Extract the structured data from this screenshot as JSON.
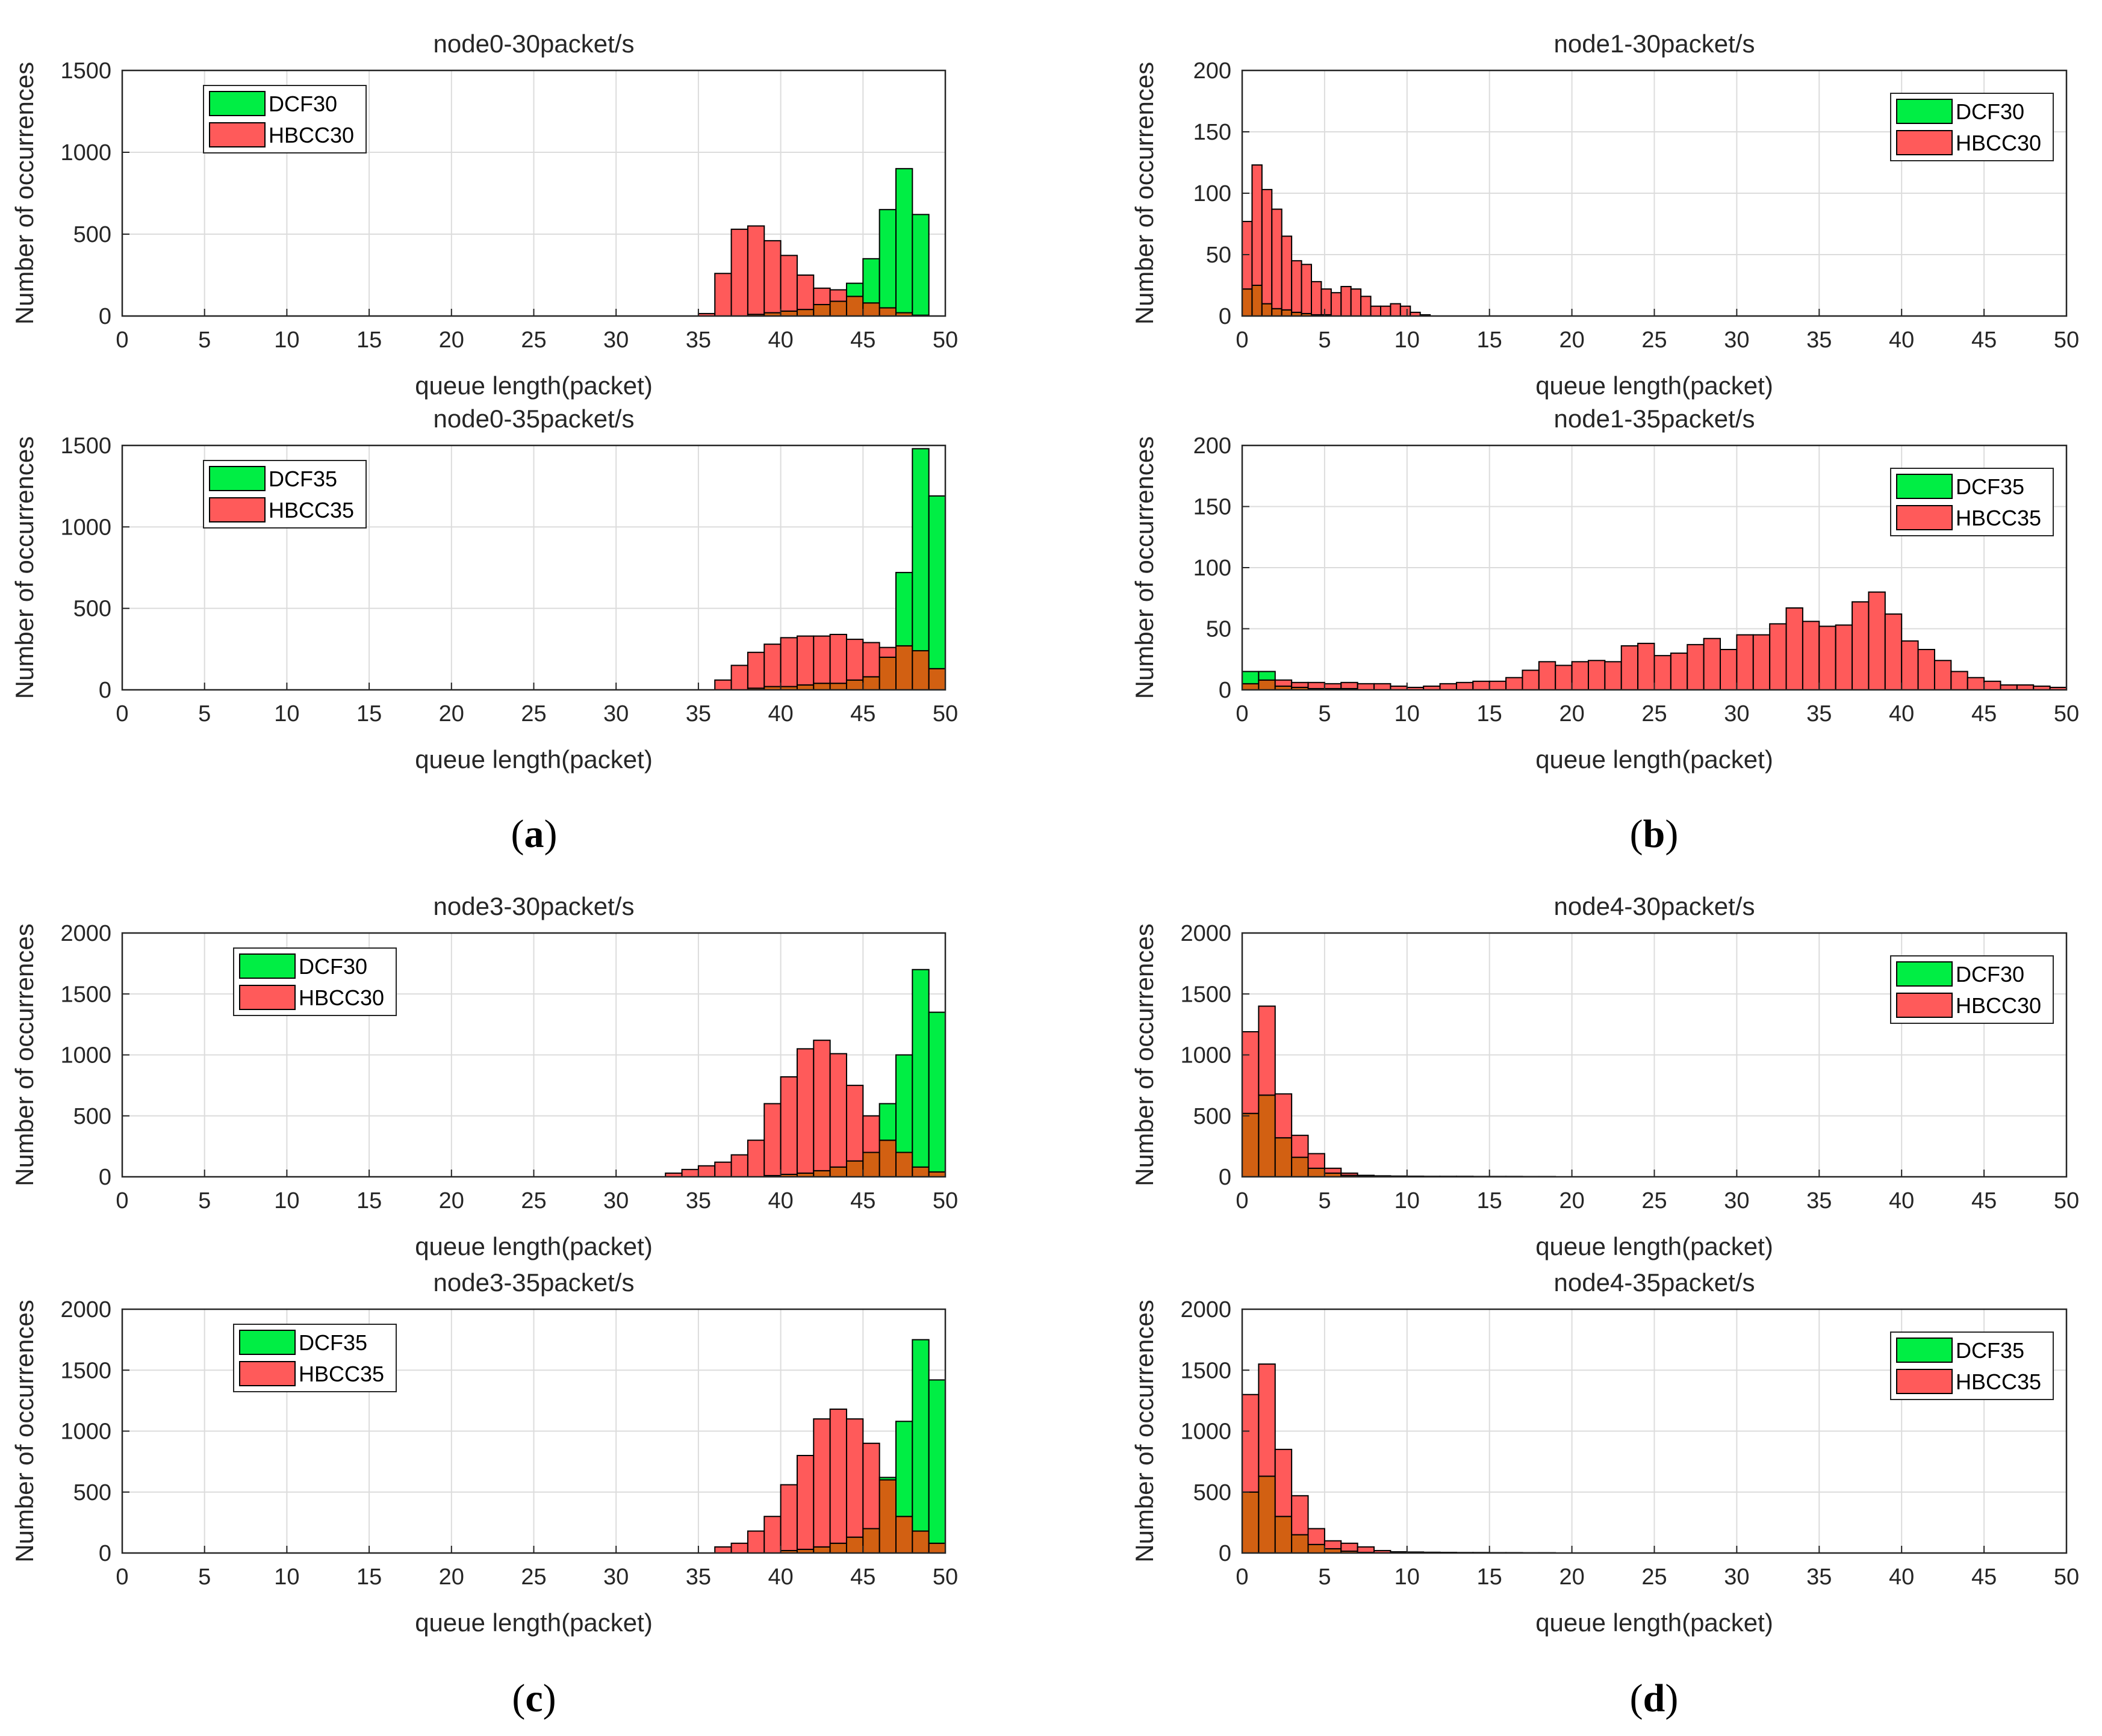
{
  "colors": {
    "dcf": "#00EE44",
    "hbcc": "#FF5A5A",
    "overlap": "#D26012",
    "grid": "#DCDCDC",
    "axis": "#262626"
  },
  "captions": [
    "a",
    "b",
    "c",
    "d"
  ],
  "chart_data": [
    {
      "type": "bar",
      "title": "node0-30packet/s",
      "xlabel": "queue length(packet)",
      "ylabel": "Number of occurrences",
      "xlim": [
        0,
        50
      ],
      "ylim": [
        0,
        1500
      ],
      "xticks": [
        0,
        5,
        10,
        15,
        20,
        25,
        30,
        35,
        40,
        45,
        50
      ],
      "yticks": [
        0,
        500,
        1000,
        1500
      ],
      "legend_position": "top-left",
      "bin_width": 1,
      "bin_start": 0,
      "series": [
        {
          "name": "DCF30",
          "values": [
            0,
            0,
            0,
            0,
            0,
            0,
            0,
            0,
            0,
            0,
            0,
            0,
            0,
            0,
            0,
            0,
            0,
            0,
            0,
            0,
            0,
            0,
            0,
            0,
            0,
            0,
            0,
            0,
            0,
            0,
            0,
            0,
            0,
            0,
            0,
            0,
            0,
            0,
            10,
            20,
            30,
            40,
            70,
            90,
            200,
            350,
            650,
            900,
            620,
            0
          ]
        },
        {
          "name": "HBCC30",
          "values": [
            0,
            0,
            0,
            0,
            0,
            0,
            0,
            0,
            0,
            0,
            0,
            0,
            0,
            0,
            0,
            0,
            0,
            0,
            0,
            0,
            0,
            0,
            0,
            0,
            0,
            0,
            0,
            0,
            0,
            0,
            0,
            0,
            0,
            0,
            0,
            15,
            260,
            530,
            550,
            460,
            370,
            250,
            170,
            160,
            120,
            80,
            50,
            20,
            5,
            0
          ]
        }
      ]
    },
    {
      "type": "bar",
      "title": "node1-30packet/s",
      "xlabel": "queue length(packet)",
      "ylabel": "Number of occurrences",
      "xlim": [
        0,
        50
      ],
      "ylim": [
        0,
        200
      ],
      "xticks": [
        0,
        5,
        10,
        15,
        20,
        25,
        30,
        35,
        40,
        45,
        50
      ],
      "yticks": [
        0,
        50,
        100,
        150,
        200
      ],
      "legend_position": "top-right",
      "bin_width": 0.6,
      "bin_start": 0,
      "series": [
        {
          "name": "DCF30",
          "values": [
            22,
            25,
            10,
            6,
            5,
            3,
            2,
            1,
            1,
            0,
            0,
            0,
            0,
            0,
            0,
            0,
            0,
            0,
            0,
            0
          ]
        },
        {
          "name": "HBCC30",
          "values": [
            77,
            123,
            103,
            87,
            65,
            45,
            42,
            28,
            22,
            19,
            24,
            22,
            16,
            8,
            8,
            10,
            8,
            3,
            1,
            0
          ]
        }
      ]
    },
    {
      "type": "bar",
      "title": "node0-35packet/s",
      "xlabel": "queue length(packet)",
      "ylabel": "Number of occurrences",
      "xlim": [
        0,
        50
      ],
      "ylim": [
        0,
        1500
      ],
      "xticks": [
        0,
        5,
        10,
        15,
        20,
        25,
        30,
        35,
        40,
        45,
        50
      ],
      "yticks": [
        0,
        500,
        1000,
        1500
      ],
      "legend_position": "top-left",
      "bin_width": 1,
      "bin_start": 0,
      "series": [
        {
          "name": "DCF35",
          "values": [
            0,
            0,
            0,
            0,
            0,
            0,
            0,
            0,
            0,
            0,
            0,
            0,
            0,
            0,
            0,
            0,
            0,
            0,
            0,
            0,
            0,
            0,
            0,
            0,
            0,
            0,
            0,
            0,
            0,
            0,
            0,
            0,
            0,
            0,
            0,
            0,
            0,
            0,
            10,
            20,
            20,
            30,
            40,
            40,
            60,
            80,
            200,
            720,
            1480,
            1190
          ]
        },
        {
          "name": "HBCC35",
          "values": [
            0,
            0,
            0,
            0,
            0,
            0,
            0,
            0,
            0,
            0,
            0,
            0,
            0,
            0,
            0,
            0,
            0,
            0,
            0,
            0,
            0,
            0,
            0,
            0,
            0,
            0,
            0,
            0,
            0,
            0,
            0,
            0,
            0,
            0,
            0,
            0,
            60,
            150,
            230,
            280,
            320,
            330,
            330,
            340,
            310,
            290,
            260,
            270,
            240,
            130
          ]
        }
      ]
    },
    {
      "type": "bar",
      "title": "node1-35packet/s",
      "xlabel": "queue length(packet)",
      "ylabel": "Number of occurrences",
      "xlim": [
        0,
        50
      ],
      "ylim": [
        0,
        200
      ],
      "xticks": [
        0,
        5,
        10,
        15,
        20,
        25,
        30,
        35,
        40,
        45,
        50
      ],
      "yticks": [
        0,
        50,
        100,
        150,
        200
      ],
      "legend_position": "top-right",
      "bin_width": 1,
      "bin_start": 0,
      "series": [
        {
          "name": "DCF35",
          "values": [
            15,
            15,
            3,
            2,
            1,
            1,
            1,
            0,
            0,
            0,
            0,
            0,
            0,
            0,
            0,
            0,
            0,
            0,
            0,
            0,
            0,
            0,
            0,
            0,
            0,
            0,
            0,
            0,
            0,
            0,
            0,
            0,
            0,
            0,
            0,
            0,
            0,
            0,
            0,
            0,
            0,
            0,
            0,
            0,
            0,
            0,
            0,
            0,
            0,
            0
          ]
        },
        {
          "name": "HBCC35",
          "values": [
            5,
            8,
            8,
            6,
            6,
            5,
            6,
            5,
            5,
            3,
            2,
            3,
            5,
            6,
            7,
            7,
            10,
            16,
            23,
            20,
            23,
            24,
            23,
            36,
            38,
            28,
            30,
            37,
            42,
            33,
            45,
            45,
            54,
            67,
            56,
            52,
            53,
            72,
            80,
            62,
            40,
            33,
            24,
            15,
            10,
            7,
            4,
            4,
            3,
            2
          ]
        }
      ]
    },
    {
      "type": "bar",
      "title": "node3-30packet/s",
      "xlabel": "queue length(packet)",
      "ylabel": "Number of occurrences",
      "xlim": [
        0,
        50
      ],
      "ylim": [
        0,
        2000
      ],
      "xticks": [
        0,
        5,
        10,
        15,
        20,
        25,
        30,
        35,
        40,
        45,
        50
      ],
      "yticks": [
        0,
        500,
        1000,
        1500,
        2000
      ],
      "legend_position": "top-left",
      "bin_width": 1,
      "bin_start": 0,
      "series": [
        {
          "name": "DCF30",
          "values": [
            0,
            0,
            0,
            0,
            0,
            0,
            0,
            0,
            0,
            0,
            0,
            0,
            0,
            0,
            0,
            0,
            0,
            0,
            0,
            0,
            0,
            0,
            0,
            0,
            0,
            0,
            0,
            0,
            0,
            0,
            0,
            0,
            0,
            0,
            0,
            0,
            0,
            0,
            0,
            10,
            20,
            30,
            50,
            80,
            130,
            200,
            600,
            1000,
            1700,
            1350
          ]
        },
        {
          "name": "HBCC30",
          "values": [
            0,
            0,
            0,
            0,
            0,
            0,
            0,
            0,
            0,
            0,
            0,
            0,
            0,
            0,
            0,
            0,
            0,
            0,
            0,
            0,
            0,
            0,
            0,
            0,
            0,
            0,
            0,
            0,
            0,
            0,
            0,
            0,
            0,
            30,
            60,
            90,
            120,
            180,
            300,
            600,
            820,
            1050,
            1120,
            1010,
            750,
            500,
            300,
            200,
            80,
            40
          ]
        }
      ]
    },
    {
      "type": "bar",
      "title": "node4-30packet/s",
      "xlabel": "queue length(packet)",
      "ylabel": "Number of occurrences",
      "xlim": [
        0,
        50
      ],
      "ylim": [
        0,
        2000
      ],
      "xticks": [
        0,
        5,
        10,
        15,
        20,
        25,
        30,
        35,
        40,
        45,
        50
      ],
      "yticks": [
        0,
        500,
        1000,
        1500,
        2000
      ],
      "legend_position": "top-right",
      "bin_width": 1,
      "bin_start": 0,
      "series": [
        {
          "name": "DCF30",
          "values": [
            520,
            670,
            320,
            160,
            70,
            30,
            12,
            5,
            2,
            0,
            0,
            0,
            0,
            0,
            0,
            0,
            0,
            0,
            0,
            0,
            0,
            0,
            0,
            0,
            0,
            0,
            0,
            0,
            0,
            0,
            0,
            0,
            0,
            0,
            0,
            0,
            0,
            0,
            0,
            0,
            0,
            0,
            0,
            0,
            0,
            0,
            0,
            0,
            0,
            0
          ]
        },
        {
          "name": "HBCC30",
          "values": [
            1190,
            1400,
            680,
            340,
            190,
            70,
            30,
            12,
            8,
            6,
            5,
            4,
            4,
            4,
            3,
            3,
            3,
            2,
            2,
            0,
            0,
            0,
            0,
            0,
            0,
            0,
            0,
            0,
            0,
            0,
            0,
            0,
            0,
            0,
            0,
            0,
            0,
            0,
            0,
            0,
            0,
            0,
            0,
            0,
            0,
            0,
            0,
            0,
            0,
            0
          ]
        }
      ]
    },
    {
      "type": "bar",
      "title": "node3-35packet/s",
      "xlabel": "queue length(packet)",
      "ylabel": "Number of occurrences",
      "xlim": [
        0,
        50
      ],
      "ylim": [
        0,
        2000
      ],
      "xticks": [
        0,
        5,
        10,
        15,
        20,
        25,
        30,
        35,
        40,
        45,
        50
      ],
      "yticks": [
        0,
        500,
        1000,
        1500,
        2000
      ],
      "legend_position": "top-left",
      "bin_width": 1,
      "bin_start": 0,
      "series": [
        {
          "name": "DCF35",
          "values": [
            0,
            0,
            0,
            0,
            0,
            0,
            0,
            0,
            0,
            0,
            0,
            0,
            0,
            0,
            0,
            0,
            0,
            0,
            0,
            0,
            0,
            0,
            0,
            0,
            0,
            0,
            0,
            0,
            0,
            0,
            0,
            0,
            0,
            0,
            0,
            0,
            0,
            0,
            0,
            0,
            20,
            30,
            50,
            80,
            130,
            200,
            620,
            1080,
            1750,
            1420
          ]
        },
        {
          "name": "HBCC35",
          "values": [
            0,
            0,
            0,
            0,
            0,
            0,
            0,
            0,
            0,
            0,
            0,
            0,
            0,
            0,
            0,
            0,
            0,
            0,
            0,
            0,
            0,
            0,
            0,
            0,
            0,
            0,
            0,
            0,
            0,
            0,
            0,
            0,
            0,
            0,
            0,
            0,
            50,
            80,
            180,
            300,
            560,
            800,
            1100,
            1180,
            1100,
            900,
            600,
            300,
            180,
            80
          ]
        }
      ]
    },
    {
      "type": "bar",
      "title": "node4-35packet/s",
      "xlabel": "queue length(packet)",
      "ylabel": "Number of occurrences",
      "xlim": [
        0,
        50
      ],
      "ylim": [
        0,
        2000
      ],
      "xticks": [
        0,
        5,
        10,
        15,
        20,
        25,
        30,
        35,
        40,
        45,
        50
      ],
      "yticks": [
        0,
        500,
        1000,
        1500,
        2000
      ],
      "legend_position": "top-right",
      "bin_width": 1,
      "bin_start": 0,
      "series": [
        {
          "name": "DCF35",
          "values": [
            500,
            630,
            300,
            150,
            70,
            35,
            15,
            5,
            2,
            0,
            0,
            0,
            0,
            0,
            0,
            0,
            0,
            0,
            0,
            0,
            0,
            0,
            0,
            0,
            0,
            0,
            0,
            0,
            0,
            0,
            0,
            0,
            0,
            0,
            0,
            0,
            0,
            0,
            0,
            0,
            0,
            0,
            0,
            0,
            0,
            0,
            0,
            0,
            0,
            0
          ]
        },
        {
          "name": "HBCC35",
          "values": [
            1300,
            1550,
            850,
            470,
            200,
            100,
            80,
            50,
            20,
            10,
            8,
            6,
            5,
            4,
            4,
            3,
            3,
            2,
            2,
            0,
            0,
            0,
            0,
            0,
            0,
            0,
            0,
            0,
            0,
            0,
            0,
            0,
            0,
            0,
            0,
            0,
            0,
            0,
            0,
            0,
            0,
            0,
            0,
            0,
            0,
            0,
            0,
            0,
            0,
            0
          ]
        }
      ]
    }
  ]
}
